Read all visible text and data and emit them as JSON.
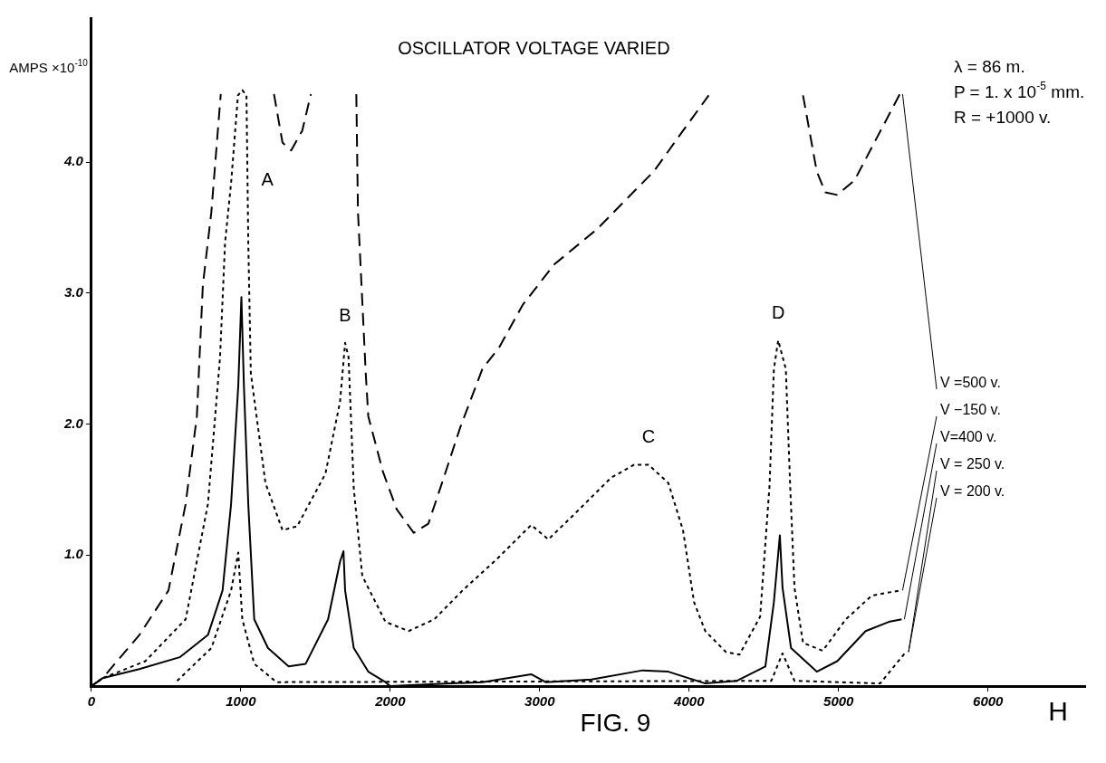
{
  "chart_data": {
    "type": "line",
    "title": "OSCILLATOR VOLTAGE VARIED",
    "xlabel": "H",
    "ylabel": "AMPS ×10$^{-10}$",
    "xlim": [
      0,
      6650
    ],
    "ylim": [
      0,
      5.1
    ],
    "xticks": [
      0,
      1000,
      2000,
      3000,
      4000,
      5000,
      6000
    ],
    "yticks": [
      {
        "value": 1,
        "label": "1.0"
      },
      {
        "value": 2,
        "label": "2.0"
      },
      {
        "value": 3,
        "label": "3.0"
      },
      {
        "value": 4,
        "label": "4.0"
      }
    ],
    "series": [
      {
        "name": "V =500 v.",
        "color": "#000000",
        "line_style": "dashed",
        "x": [
          0,
          75,
          321,
          516,
          631,
          706,
          746,
          803,
          866,
          null,
          1222,
          1279,
          1337,
          1411,
          1469,
          null,
          1773,
          1784,
          1836,
          1853,
          1950,
          2043,
          2157,
          2255,
          2352,
          2467,
          2616,
          2731,
          2886,
          3098,
          3385,
          3574,
          3764,
          3959,
          4131,
          null,
          4762,
          4854,
          4911,
          4991,
          5106,
          5221,
          5410
        ],
        "values": [
          0,
          0.06,
          0.39,
          0.73,
          1.39,
          2.06,
          3.06,
          3.62,
          4.52,
          null,
          4.52,
          4.15,
          4.09,
          4.24,
          4.52,
          null,
          4.52,
          3.62,
          2.39,
          2.06,
          1.64,
          1.35,
          1.17,
          1.24,
          1.57,
          1.97,
          2.42,
          2.59,
          2.91,
          3.22,
          3.49,
          3.71,
          3.93,
          4.24,
          4.51,
          null,
          4.51,
          3.93,
          3.77,
          3.75,
          3.86,
          4.11,
          4.52
        ]
      },
      {
        "name": "V −150 v.",
        "color": "#000000",
        "line_style": "dotted",
        "x": [
          0,
          75,
          361,
          631,
          780,
          861,
          895,
          935,
          981,
          1010,
          1038,
          1050,
          1067,
          1165,
          1279,
          1377,
          1566,
          1664,
          1698,
          1721,
          1756,
          1813,
          1968,
          2123,
          2295,
          2484,
          2714,
          2943,
          3058,
          3230,
          3477,
          3632,
          3729,
          3861,
          3959,
          4033,
          4108,
          4246,
          4337,
          4475,
          4538,
          4567,
          4596,
          4647,
          4676,
          4705,
          4762,
          4894,
          5049,
          5221,
          5410
        ],
        "values": [
          0,
          0.06,
          0.19,
          0.51,
          1.39,
          2.51,
          3.39,
          3.84,
          4.51,
          4.55,
          4.51,
          3.39,
          2.39,
          1.55,
          1.19,
          1.22,
          1.62,
          2.17,
          2.62,
          2.51,
          1.51,
          0.84,
          0.49,
          0.42,
          0.51,
          0.73,
          0.97,
          1.23,
          1.12,
          1.31,
          1.59,
          1.69,
          1.69,
          1.55,
          1.19,
          0.64,
          0.42,
          0.26,
          0.24,
          0.53,
          1.53,
          2.42,
          2.64,
          2.42,
          1.53,
          0.75,
          0.33,
          0.27,
          0.51,
          0.69,
          0.73
        ]
      },
      {
        "name": "V=400 v.",
        "color": "#000000",
        "line_style": "solid",
        "x": [
          0,
          75,
          321,
          591,
          780,
          878,
          935,
          983,
          1004,
          1021,
          1050,
          1090,
          1182,
          1320,
          1434,
          1584,
          1664,
          1687,
          1698,
          1756,
          1853,
          1968,
          2000,
          2616,
          2943,
          3040,
          3345,
          3689,
          3861,
          4108,
          4320,
          4510,
          4567,
          4607,
          4625,
          4682,
          4854,
          4991,
          5181,
          5336,
          5422
        ],
        "values": [
          0,
          0.06,
          0.13,
          0.22,
          0.39,
          0.73,
          1.39,
          2.29,
          2.97,
          2.29,
          1.39,
          0.51,
          0.29,
          0.15,
          0.17,
          0.51,
          0.95,
          1.03,
          0.73,
          0.29,
          0.11,
          0.03,
          0,
          0.03,
          0.09,
          0.03,
          0.05,
          0.12,
          0.11,
          0.02,
          0.04,
          0.15,
          0.64,
          1.15,
          0.75,
          0.29,
          0.11,
          0.19,
          0.42,
          0.49,
          0.51
        ]
      },
      {
        "name": "V = 250 v.",
        "color": "#000000",
        "line_style": "dotted",
        "x": [
          574,
          803,
          935,
          983,
          1010,
          1090,
          1239,
          4550,
          4625,
          4705,
          5278,
          5450
        ],
        "values": [
          0.04,
          0.29,
          0.73,
          1.02,
          0.51,
          0.17,
          0.03,
          0.04,
          0.25,
          0.04,
          0.02,
          0.26
        ]
      }
    ],
    "annotations": [
      {
        "text": "A",
        "x": 1045,
        "y": 3.87
      },
      {
        "text": "B",
        "x": 1698,
        "y": 2.62
      },
      {
        "text": "C",
        "x": 3729,
        "y": 1.69
      },
      {
        "text": "D",
        "x": 4596,
        "y": 2.64
      },
      {
        "text": "V = 200 v.",
        "x": 5450,
        "y": 0.26
      },
      "λ = 86 m.",
      "P = 1. x 10$^{-5}$ mm.",
      "R = +1000 v.",
      "FIG. 9"
    ]
  }
}
